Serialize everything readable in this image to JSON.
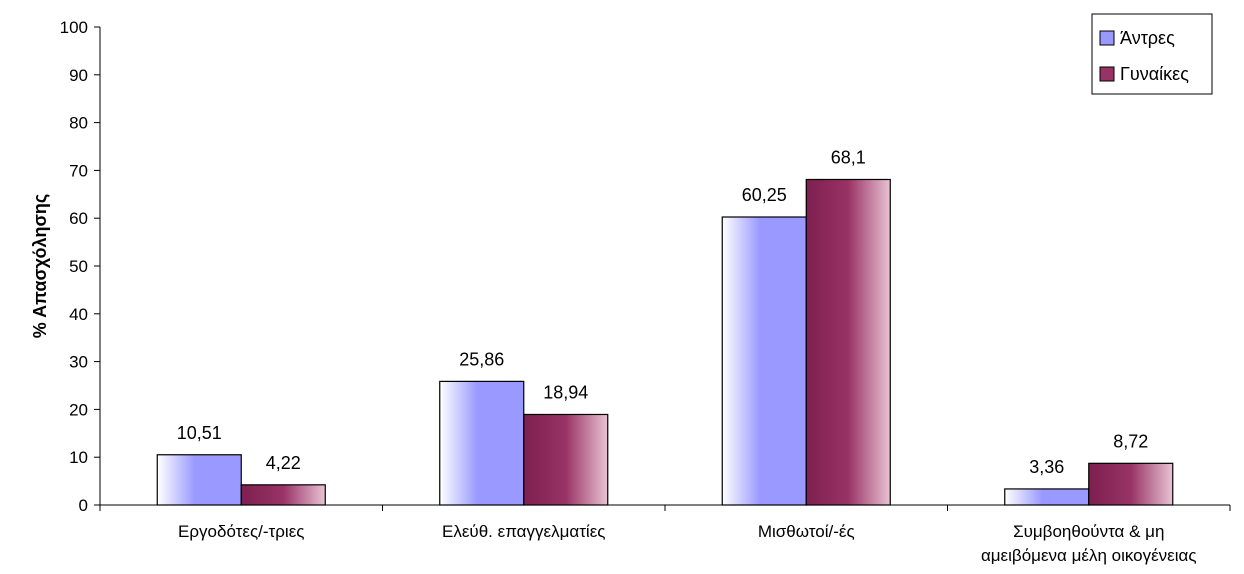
{
  "chart_data": {
    "type": "bar",
    "title": "",
    "xlabel": "",
    "ylabel": "% Απασχόλησης",
    "ylim": [
      0,
      100
    ],
    "yticks": [
      0,
      10,
      20,
      30,
      40,
      50,
      60,
      70,
      80,
      90,
      100
    ],
    "grid": false,
    "legend_position": "top-right",
    "categories": [
      [
        "Εργοδότες/-τριες"
      ],
      [
        "Ελεύθ. επαγγελματίες"
      ],
      [
        "Μισθωτοί/-ές"
      ],
      [
        "Συμβοηθούντα & μη",
        "αμειβόμενα μέλη οικογένειας"
      ]
    ],
    "series": [
      {
        "name": "Άντρες",
        "values": [
          10.51,
          25.86,
          60.25,
          3.36
        ],
        "labels": [
          "10,51",
          "25,86",
          "60,25",
          "3,36"
        ],
        "color": "#9999ff"
      },
      {
        "name": "Γυναίκες",
        "values": [
          4.22,
          18.94,
          68.1,
          8.72
        ],
        "labels": [
          "4,22",
          "18,94",
          "68,1",
          "8,72"
        ],
        "color": "#993366"
      }
    ]
  }
}
